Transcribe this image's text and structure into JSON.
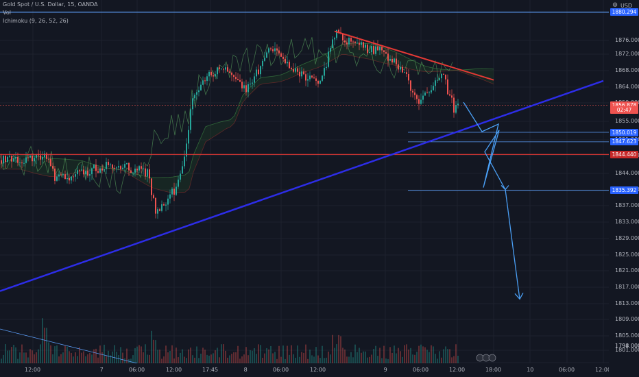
{
  "header": {
    "symbol": "Gold Spot / U.S. Dollar, 15, OANDA",
    "volume_label": "Vol",
    "indicator": "Ichimoku (9, 26, 52, 26)"
  },
  "price_axis": {
    "currency": "USD",
    "ticks": [
      "1876.000",
      "1872.000",
      "1868.000",
      "1864.000",
      "1859.000",
      "1855.000",
      "1851.000",
      "1847.000",
      "1844.000",
      "1841.000",
      "1837.000",
      "1833.000",
      "1829.000",
      "1825.000",
      "1821.000",
      "1817.000",
      "1813.000",
      "1809.000",
      "1805.000",
      "1801.000",
      "1798.000",
      "1794.000"
    ]
  },
  "badges": [
    {
      "label": "1880.294",
      "color": "#2962ff",
      "price": 1880.294
    },
    {
      "label": "1856.878",
      "color": "#ef5350",
      "price": 1856.878
    },
    {
      "label": "02:47",
      "color": "#ef5350",
      "price": 1855.6
    },
    {
      "label": "1850.019",
      "color": "#2962ff",
      "price": 1850.019
    },
    {
      "label": "1847.623",
      "color": "#2962ff",
      "price": 1847.623
    },
    {
      "label": "1844.440",
      "color": "#c62828",
      "price": 1844.44
    },
    {
      "label": "1835.392",
      "color": "#2962ff",
      "price": 1835.392
    }
  ],
  "time_axis": {
    "ticks": [
      "12:00",
      "7",
      "06:00",
      "12:00",
      "17:45",
      "8",
      "06:00",
      "12:00",
      "9",
      "06:00",
      "12:00",
      "18:00",
      "10",
      "06:00",
      "12:00"
    ]
  },
  "chart_data": {
    "type": "candlestick",
    "title": "Gold Spot / U.S. Dollar, 15, OANDA",
    "ylim": [
      1792.5,
      1882.5
    ],
    "grid": true,
    "horizontal_levels": [
      {
        "price": 1880.294,
        "color": "#5b9cf6"
      },
      {
        "price": 1844.44,
        "color": "#e53935"
      },
      {
        "price": 1850.019,
        "color": "#5b9cf6"
      },
      {
        "price": 1847.623,
        "color": "#5b9cf6"
      },
      {
        "price": 1835.392,
        "color": "#5b9cf6"
      }
    ],
    "trend_lines": [
      {
        "color": "#2d2de8",
        "from": {
          "time": "6 18:00",
          "price": 1810
        },
        "to": {
          "time": "10 03:00",
          "price": 1863
        }
      },
      {
        "color": "#e53935",
        "from": {
          "time": "8 13:00",
          "price": 1875.5
        },
        "to": {
          "time": "9 13:30",
          "price": 1863.2
        }
      }
    ],
    "projection_path": [
      1857.6,
      1850.2,
      1852.1,
      1836.1,
      1850.6,
      1845.1,
      1835.6
    ],
    "projection_arrow": {
      "from": 1835.6,
      "to": 1808
    }
  },
  "colors": {
    "up": "#26a69a",
    "down": "#ef5350",
    "background": "#131722"
  }
}
